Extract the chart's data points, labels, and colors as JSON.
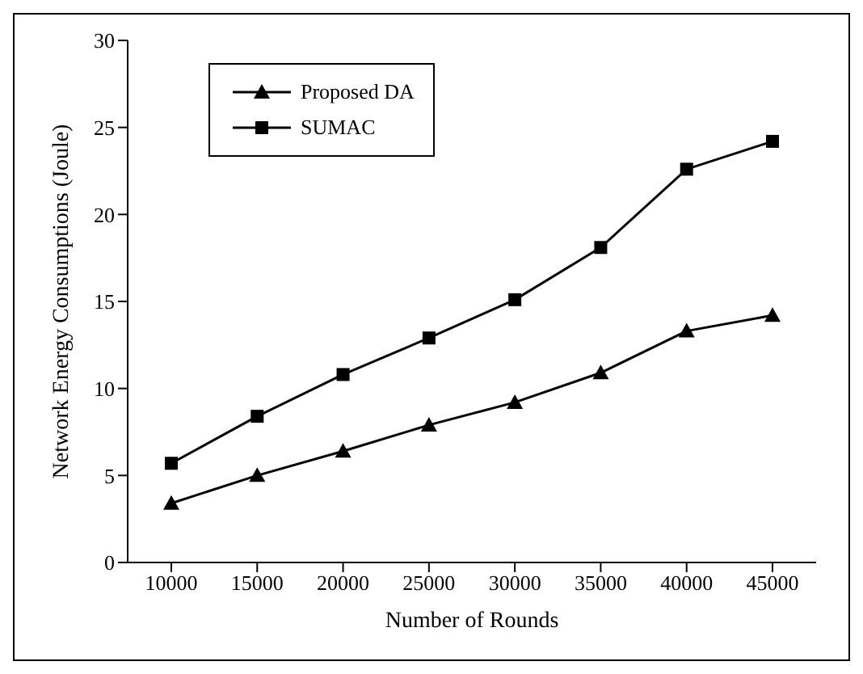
{
  "chart_data": {
    "type": "line",
    "xlabel": "Number of Rounds",
    "ylabel": "Network Energy Consumptions (Joule)",
    "categories": [
      "10000",
      "15000",
      "20000",
      "25000",
      "30000",
      "35000",
      "40000",
      "45000"
    ],
    "series": [
      {
        "name": "Proposed DA",
        "color": "#000000",
        "marker": "triangle",
        "values": [
          3.4,
          5.0,
          6.4,
          7.9,
          9.2,
          10.9,
          13.3,
          14.2
        ]
      },
      {
        "name": "SUMAC",
        "color": "#000000",
        "marker": "square",
        "values": [
          5.7,
          8.4,
          10.8,
          12.9,
          15.1,
          18.1,
          22.6,
          24.2
        ]
      }
    ],
    "ylim": [
      0,
      30
    ],
    "yticks": [
      0,
      5,
      10,
      15,
      20,
      25,
      30
    ],
    "grid": false,
    "legend": "top left"
  }
}
